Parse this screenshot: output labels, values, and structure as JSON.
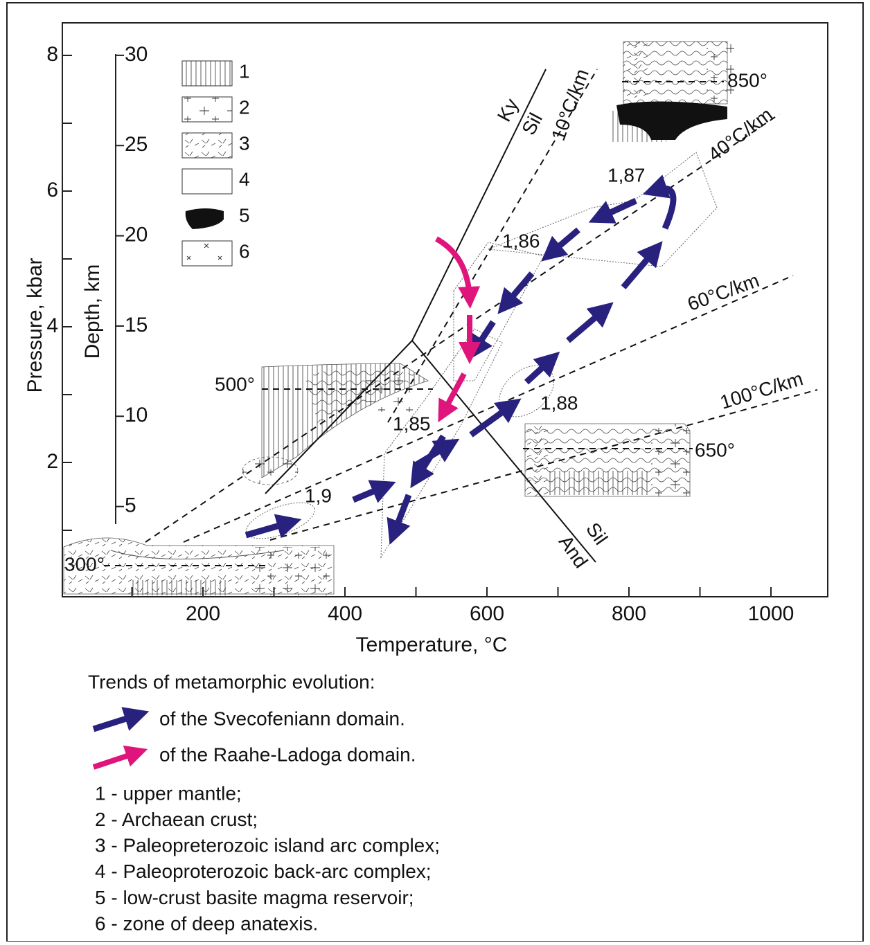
{
  "axes": {
    "x_label": "Temperature, °C",
    "x_ticks": [
      200,
      400,
      600,
      800,
      1000
    ],
    "x_minor_ticks": [
      100,
      300,
      500,
      700,
      900
    ],
    "y_label": "Pressure, kbar",
    "y_ticks": [
      2,
      4,
      6,
      8
    ],
    "y_minor_ticks": [
      1,
      3,
      5,
      7
    ],
    "depth_label": "Depth, km",
    "depth_ticks": [
      5,
      10,
      15,
      20,
      25,
      30
    ]
  },
  "annotations": {
    "ky": "Ky",
    "sil_upper": "Sil",
    "sil_lower": "Sil",
    "and": "And",
    "gradients": [
      "10°C/km",
      "40°C/km",
      "60°C/km",
      "100°C/km"
    ],
    "isotherms": [
      "850°",
      "500°",
      "650°",
      "300°"
    ],
    "ages": [
      "1,87",
      "1,86",
      "1,85",
      "1,88",
      "1,9"
    ]
  },
  "legend": [
    "1",
    "2",
    "3",
    "4",
    "5",
    "6"
  ],
  "caption": {
    "title": "Trends of metamorphic evolution:",
    "svecofenian": "of the Svecofeniann domain.",
    "raahe": "of the Raahe-Ladoga domain.",
    "items": [
      "1 - upper mantle;",
      "2 - Archaean crust;",
      "3 - Paleopreterozoic island arc complex;",
      "4 - Paleoproterozoic back-arc complex;",
      "5 - low-crust basite magma reservoir;",
      "6 - zone of deep anatexis."
    ]
  }
}
